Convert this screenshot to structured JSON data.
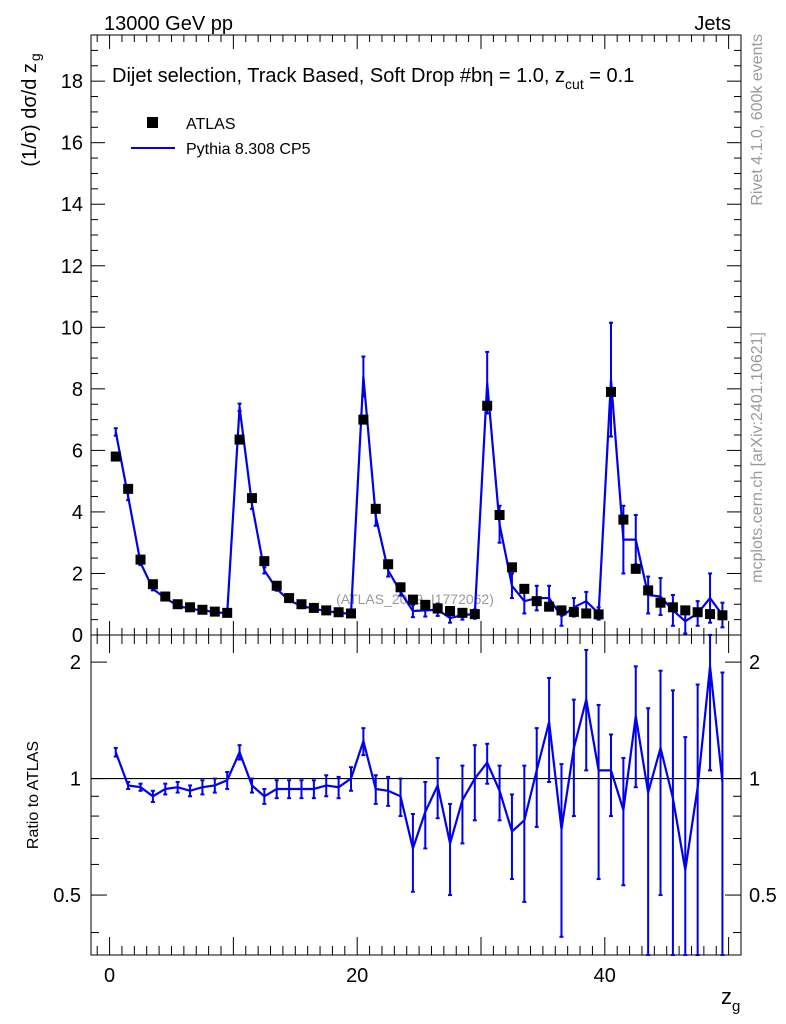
{
  "header": {
    "left": "13000 GeV pp",
    "right": "Jets"
  },
  "side_labels": {
    "rivet": "Rivet 4.1.0,  600k events",
    "mcplots": "mcplots.cern.ch [arXiv:2401.10621]"
  },
  "watermark": "(ATLAS_2019_I1772062)",
  "colors": {
    "mc": "#0000ee",
    "data": "#000000"
  },
  "chart_data": [
    {
      "type": "scatter",
      "title": "Dijet selection, Track Based, Soft Drop #beta = 1.0, z_cut = 0.1",
      "title_parts": {
        "main": "Dijet selection, Track Based, Soft Drop #b",
        "eta": "η = 1.0, z",
        "sub": "cut",
        "tail": " = 0.1"
      },
      "ylabel_parts": {
        "main": "(1/σ) dσ/d z",
        "sub": "g"
      },
      "xlabel": "z",
      "xlabel_sub": "g",
      "xlim": [
        -1.5,
        51
      ],
      "ylim": [
        0,
        19.5
      ],
      "yticks": [
        0,
        2,
        4,
        6,
        8,
        10,
        12,
        14,
        16,
        18
      ],
      "xticks": [
        0,
        20,
        40
      ],
      "legend": [
        {
          "name": "ATLAS",
          "marker": "square"
        },
        {
          "name": "Pythia 8.308 CP5",
          "marker": "line"
        }
      ],
      "x": [
        0.5,
        1.5,
        2.5,
        3.5,
        4.5,
        5.5,
        6.5,
        7.5,
        8.5,
        9.5,
        10.5,
        11.5,
        12.5,
        13.5,
        14.5,
        15.5,
        16.5,
        17.5,
        18.5,
        19.5,
        20.5,
        21.5,
        22.5,
        23.5,
        24.5,
        25.5,
        26.5,
        27.5,
        28.5,
        29.5,
        30.5,
        31.5,
        32.5,
        33.5,
        34.5,
        35.5,
        36.5,
        37.5,
        38.5,
        39.5,
        40.5,
        41.5,
        42.5,
        43.5,
        44.5,
        45.5,
        46.5,
        47.5,
        48.5,
        49.5
      ],
      "series": [
        {
          "name": "ATLAS",
          "values": [
            5.8,
            4.75,
            2.45,
            1.65,
            1.25,
            1.0,
            0.9,
            0.82,
            0.76,
            0.72,
            6.35,
            4.45,
            2.4,
            1.6,
            1.2,
            1.0,
            0.88,
            0.8,
            0.74,
            0.7,
            7.0,
            4.1,
            2.3,
            1.55,
            1.15,
            0.98,
            0.86,
            0.78,
            0.72,
            0.68,
            7.45,
            3.9,
            2.2,
            1.5,
            1.1,
            0.92,
            0.8,
            0.75,
            0.7,
            0.67,
            7.9,
            3.75,
            2.15,
            1.45,
            1.05,
            0.9,
            0.8,
            0.74,
            0.68,
            0.64
          ]
        },
        {
          "name": "Pythia 8.308 CP5",
          "values": [
            6.6,
            4.5,
            2.35,
            1.5,
            1.2,
            0.95,
            0.85,
            0.8,
            0.75,
            0.7,
            7.4,
            4.25,
            2.1,
            1.5,
            1.12,
            0.95,
            0.85,
            0.78,
            0.72,
            0.69,
            8.4,
            3.85,
            2.1,
            1.4,
            0.78,
            0.8,
            0.82,
            0.55,
            0.65,
            0.68,
            8.2,
            3.6,
            1.6,
            1.1,
            1.2,
            1.2,
            0.6,
            0.9,
            1.1,
            0.7,
            8.3,
            3.1,
            3.1,
            1.3,
            1.25,
            0.8,
            0.45,
            0.7,
            1.2,
            0.65
          ],
          "errors": [
            0.12,
            0.12,
            0.08,
            0.05,
            0.04,
            0.04,
            0.04,
            0.04,
            0.04,
            0.04,
            0.12,
            0.15,
            0.1,
            0.06,
            0.05,
            0.05,
            0.05,
            0.05,
            0.05,
            0.05,
            0.65,
            0.3,
            0.2,
            0.12,
            0.2,
            0.2,
            0.2,
            0.15,
            0.15,
            0.15,
            1.0,
            0.6,
            0.4,
            0.4,
            0.4,
            0.4,
            0.3,
            0.3,
            0.3,
            0.2,
            1.85,
            1.1,
            0.8,
            0.6,
            0.6,
            0.5,
            0.4,
            0.4,
            0.8,
            0.4
          ]
        }
      ]
    },
    {
      "type": "line",
      "ylabel": "Ratio to ATLAS",
      "xlim": [
        -1.5,
        51
      ],
      "ylim": [
        0.35,
        2.35
      ],
      "yticks": [
        0.5,
        1,
        2
      ],
      "ytick_labels": [
        "0.5",
        "1",
        "2"
      ],
      "reference": 1,
      "x": [
        0.5,
        1.5,
        2.5,
        3.5,
        4.5,
        5.5,
        6.5,
        7.5,
        8.5,
        9.5,
        10.5,
        11.5,
        12.5,
        13.5,
        14.5,
        15.5,
        16.5,
        17.5,
        18.5,
        19.5,
        20.5,
        21.5,
        22.5,
        23.5,
        24.5,
        25.5,
        26.5,
        27.5,
        28.5,
        29.5,
        30.5,
        31.5,
        32.5,
        33.5,
        34.5,
        35.5,
        36.5,
        37.5,
        38.5,
        39.5,
        40.5,
        41.5,
        42.5,
        43.5,
        44.5,
        45.5,
        46.5,
        47.5,
        48.5,
        49.5
      ],
      "series": [
        {
          "name": "Pythia 8.308 CP5 / ATLAS",
          "values": [
            1.17,
            0.96,
            0.95,
            0.9,
            0.94,
            0.95,
            0.93,
            0.95,
            0.96,
            0.99,
            1.17,
            0.96,
            0.9,
            0.94,
            0.94,
            0.94,
            0.94,
            0.96,
            0.95,
            1.0,
            1.25,
            0.94,
            0.93,
            0.9,
            0.66,
            0.82,
            0.96,
            0.68,
            0.88,
            1.0,
            1.1,
            0.93,
            0.73,
            0.78,
            1.05,
            1.4,
            0.74,
            1.2,
            1.6,
            1.05,
            1.05,
            0.83,
            1.45,
            0.92,
            1.2,
            0.89,
            0.58,
            0.95,
            1.95,
            0.98
          ],
          "errors": [
            0.03,
            0.02,
            0.02,
            0.03,
            0.03,
            0.03,
            0.03,
            0.04,
            0.04,
            0.05,
            0.05,
            0.04,
            0.04,
            0.05,
            0.05,
            0.05,
            0.05,
            0.06,
            0.06,
            0.07,
            0.1,
            0.08,
            0.08,
            0.1,
            0.15,
            0.16,
            0.17,
            0.18,
            0.2,
            0.22,
            0.13,
            0.15,
            0.18,
            0.3,
            0.3,
            0.42,
            0.35,
            0.4,
            0.55,
            0.5,
            0.25,
            0.3,
            0.5,
            0.6,
            0.7,
            0.8,
            0.7,
            0.8,
            0.9,
            0.9
          ]
        }
      ]
    }
  ]
}
